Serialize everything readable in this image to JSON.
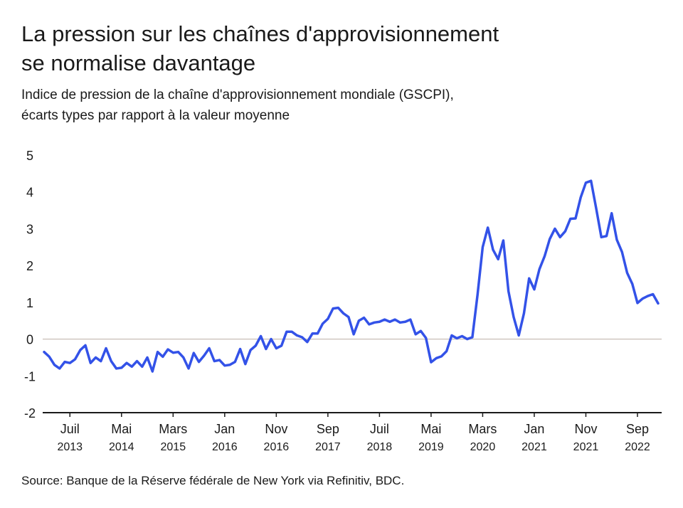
{
  "chart_data": {
    "type": "line",
    "title": [
      "La pression sur les chaînes d'approvisionnement",
      "se normalise davantage"
    ],
    "subtitle": [
      "Indice de pression de la chaîne d'approvisionnement mondiale (GSCPI),",
      "écarts types par rapport à la valeur moyenne"
    ],
    "source": "Source: Banque de la Réserve fédérale de New York via Refinitiv, BDC.",
    "x": [
      "2013-02",
      "2013-03",
      "2013-04",
      "2013-05",
      "2013-06",
      "2013-07",
      "2013-08",
      "2013-09",
      "2013-10",
      "2013-11",
      "2013-12",
      "2014-01",
      "2014-02",
      "2014-03",
      "2014-04",
      "2014-05",
      "2014-06",
      "2014-07",
      "2014-08",
      "2014-09",
      "2014-10",
      "2014-11",
      "2014-12",
      "2015-01",
      "2015-02",
      "2015-03",
      "2015-04",
      "2015-05",
      "2015-06",
      "2015-07",
      "2015-08",
      "2015-09",
      "2015-10",
      "2015-11",
      "2015-12",
      "2016-01",
      "2016-02",
      "2016-03",
      "2016-04",
      "2016-05",
      "2016-06",
      "2016-07",
      "2016-08",
      "2016-09",
      "2016-10",
      "2016-11",
      "2016-12",
      "2017-01",
      "2017-02",
      "2017-03",
      "2017-04",
      "2017-05",
      "2017-06",
      "2017-07",
      "2017-08",
      "2017-09",
      "2017-10",
      "2017-11",
      "2017-12",
      "2018-01",
      "2018-02",
      "2018-03",
      "2018-04",
      "2018-05",
      "2018-06",
      "2018-07",
      "2018-08",
      "2018-09",
      "2018-10",
      "2018-11",
      "2018-12",
      "2019-01",
      "2019-02",
      "2019-03",
      "2019-04",
      "2019-05",
      "2019-06",
      "2019-07",
      "2019-08",
      "2019-09",
      "2019-10",
      "2019-11",
      "2019-12",
      "2020-01",
      "2020-02",
      "2020-03",
      "2020-04",
      "2020-05",
      "2020-06",
      "2020-07",
      "2020-08",
      "2020-09",
      "2020-10",
      "2020-11",
      "2020-12",
      "2021-01",
      "2021-02",
      "2021-03",
      "2021-04",
      "2021-05",
      "2021-06",
      "2021-07",
      "2021-08",
      "2021-09",
      "2021-10",
      "2021-11",
      "2021-12",
      "2022-01",
      "2022-02",
      "2022-03",
      "2022-04",
      "2022-05",
      "2022-06",
      "2022-07",
      "2022-08",
      "2022-09",
      "2022-10",
      "2022-11",
      "2022-12",
      "2023-01"
    ],
    "series": [
      {
        "name": "GSCPI",
        "color": "#3352e8",
        "values": [
          -0.35,
          -0.48,
          -0.7,
          -0.8,
          -0.62,
          -0.65,
          -0.55,
          -0.3,
          -0.17,
          -0.65,
          -0.5,
          -0.6,
          -0.25,
          -0.6,
          -0.8,
          -0.78,
          -0.65,
          -0.75,
          -0.6,
          -0.75,
          -0.5,
          -0.88,
          -0.35,
          -0.48,
          -0.28,
          -0.37,
          -0.35,
          -0.5,
          -0.8,
          -0.38,
          -0.62,
          -0.45,
          -0.25,
          -0.6,
          -0.57,
          -0.72,
          -0.7,
          -0.62,
          -0.27,
          -0.68,
          -0.3,
          -0.18,
          0.08,
          -0.27,
          0.0,
          -0.25,
          -0.18,
          0.2,
          0.2,
          0.1,
          0.05,
          -0.08,
          0.15,
          0.15,
          0.42,
          0.55,
          0.83,
          0.85,
          0.7,
          0.6,
          0.13,
          0.5,
          0.58,
          0.4,
          0.45,
          0.47,
          0.53,
          0.47,
          0.53,
          0.45,
          0.47,
          0.53,
          0.13,
          0.22,
          0.03,
          -0.63,
          -0.52,
          -0.47,
          -0.33,
          0.1,
          0.02,
          0.08,
          0.0,
          0.05,
          1.2,
          2.5,
          3.03,
          2.43,
          2.17,
          2.68,
          1.3,
          0.6,
          0.1,
          0.7,
          1.65,
          1.35,
          1.9,
          2.25,
          2.72,
          3.0,
          2.77,
          2.93,
          3.27,
          3.28,
          3.85,
          4.25,
          4.3,
          3.55,
          2.77,
          2.8,
          3.42,
          2.7,
          2.37,
          1.8,
          1.5,
          0.98,
          1.1,
          1.17,
          1.22,
          0.97
        ]
      }
    ],
    "xlim": [
      "2013-02",
      "2023-01"
    ],
    "xticks": [
      {
        "value": "2013-07",
        "label": [
          "Juil",
          "2013"
        ]
      },
      {
        "value": "2014-05",
        "label": [
          "Mai",
          "2014"
        ]
      },
      {
        "value": "2015-03",
        "label": [
          "Mars",
          "2015"
        ]
      },
      {
        "value": "2016-01",
        "label": [
          "Jan",
          "2016"
        ]
      },
      {
        "value": "2016-11",
        "label": [
          "Nov",
          "2016"
        ]
      },
      {
        "value": "2017-09",
        "label": [
          "Sep",
          "2017"
        ]
      },
      {
        "value": "2018-07",
        "label": [
          "Juil",
          "2018"
        ]
      },
      {
        "value": "2019-05",
        "label": [
          "Mai",
          "2019"
        ]
      },
      {
        "value": "2020-03",
        "label": [
          "Mars",
          "2020"
        ]
      },
      {
        "value": "2021-01",
        "label": [
          "Jan",
          "2021"
        ]
      },
      {
        "value": "2021-11",
        "label": [
          "Nov",
          "2021"
        ]
      },
      {
        "value": "2022-09",
        "label": [
          "Sep",
          "2022"
        ]
      }
    ],
    "ylim": [
      -2,
      5
    ],
    "yticks": [
      -2,
      -1,
      0,
      1,
      2,
      3,
      4,
      5
    ]
  }
}
